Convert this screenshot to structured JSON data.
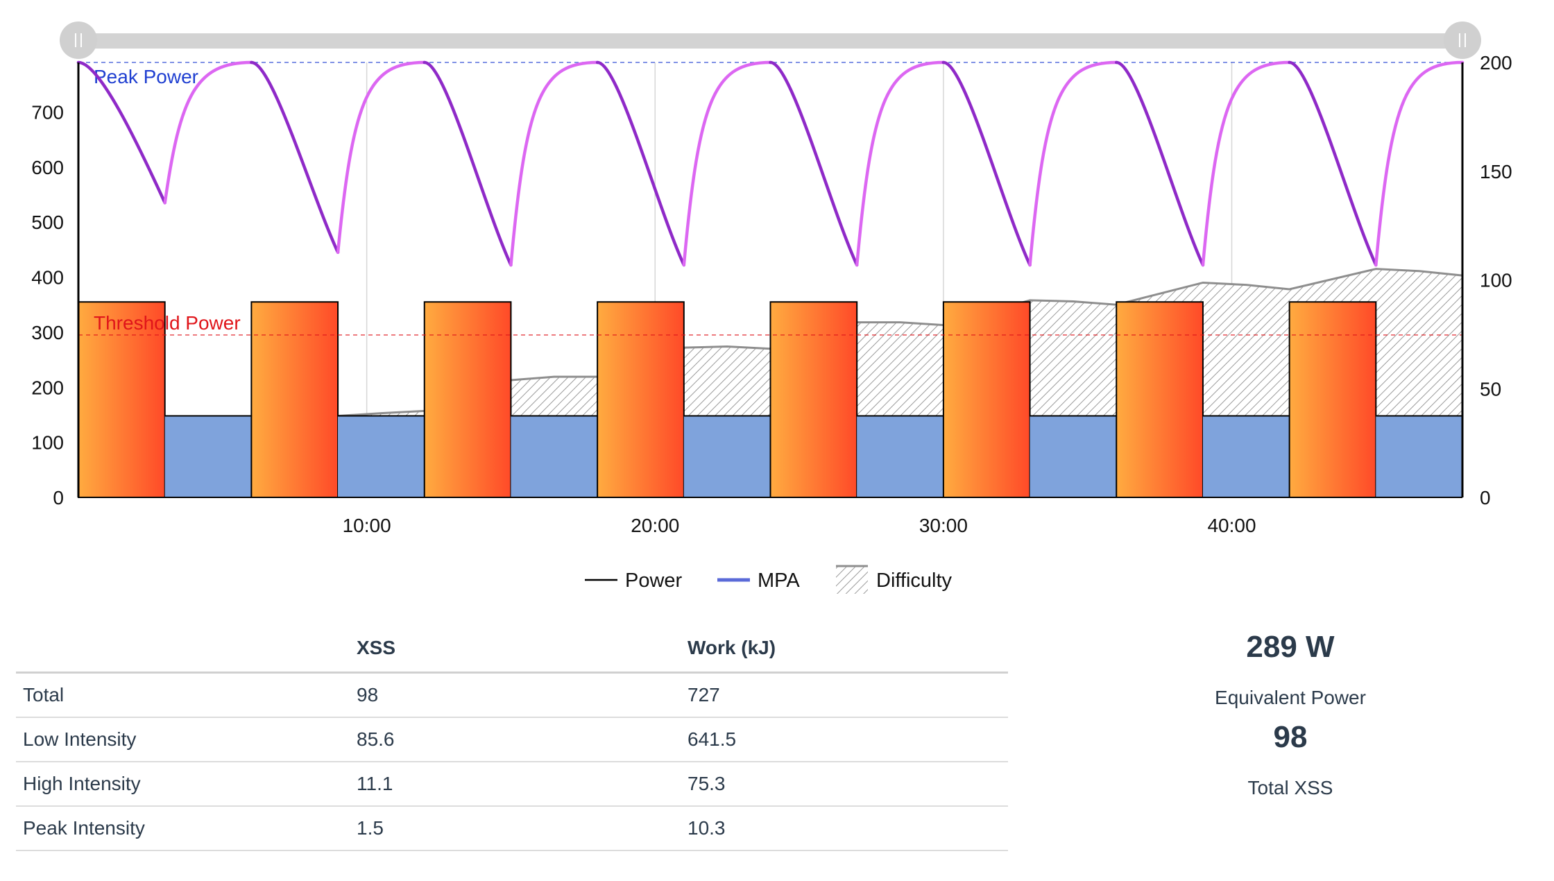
{
  "chart_data": {
    "type": "bar-line-area",
    "x_ticks": [
      "10:00",
      "20:00",
      "30:00",
      "40:00"
    ],
    "xlim_minutes": [
      0,
      48
    ],
    "ylim_left": [
      0,
      790
    ],
    "y_ticks_left": [
      0,
      100,
      200,
      300,
      400,
      500,
      600,
      700
    ],
    "ylim_right": [
      0,
      200
    ],
    "y_ticks_right": [
      0,
      50,
      100,
      150,
      200
    ],
    "reference_lines": [
      {
        "label": "Peak Power",
        "value": 790,
        "color": "#1f3fd1"
      },
      {
        "label": "Threshold Power",
        "value": 295,
        "color": "#e0151a"
      }
    ],
    "power_segments": [
      {
        "start": 0,
        "end": 3,
        "watts": 355,
        "kind": "high"
      },
      {
        "start": 3,
        "end": 6,
        "watts": 148,
        "kind": "low"
      },
      {
        "start": 6,
        "end": 9,
        "watts": 355,
        "kind": "high"
      },
      {
        "start": 9,
        "end": 12,
        "watts": 148,
        "kind": "low"
      },
      {
        "start": 12,
        "end": 15,
        "watts": 355,
        "kind": "high"
      },
      {
        "start": 15,
        "end": 18,
        "watts": 148,
        "kind": "low"
      },
      {
        "start": 18,
        "end": 21,
        "watts": 355,
        "kind": "high"
      },
      {
        "start": 21,
        "end": 24,
        "watts": 148,
        "kind": "low"
      },
      {
        "start": 24,
        "end": 27,
        "watts": 355,
        "kind": "high"
      },
      {
        "start": 27,
        "end": 30,
        "watts": 148,
        "kind": "low"
      },
      {
        "start": 30,
        "end": 33,
        "watts": 355,
        "kind": "high"
      },
      {
        "start": 33,
        "end": 36,
        "watts": 148,
        "kind": "low"
      },
      {
        "start": 36,
        "end": 39,
        "watts": 355,
        "kind": "high"
      },
      {
        "start": 39,
        "end": 42,
        "watts": 148,
        "kind": "low"
      },
      {
        "start": 42,
        "end": 45,
        "watts": 355,
        "kind": "high"
      },
      {
        "start": 45,
        "end": 48,
        "watts": 148,
        "kind": "low"
      }
    ],
    "mpa_peaks": [
      {
        "start": 0,
        "peak": 790,
        "trough": 535
      },
      {
        "start": 6,
        "peak": 790,
        "trough": 445
      },
      {
        "start": 12,
        "peak": 790,
        "trough": 422
      },
      {
        "start": 18,
        "peak": 790,
        "trough": 422
      },
      {
        "start": 24,
        "peak": 790,
        "trough": 422
      },
      {
        "start": 30,
        "peak": 790,
        "trough": 422
      },
      {
        "start": 36,
        "peak": 790,
        "trough": 422
      },
      {
        "start": 42,
        "peak": 790,
        "trough": 422
      }
    ],
    "difficulty": [
      {
        "x": 9.0,
        "y": 148
      },
      {
        "x": 10.5,
        "y": 153
      },
      {
        "x": 12.0,
        "y": 157
      },
      {
        "x": 15.0,
        "y": 213
      },
      {
        "x": 16.5,
        "y": 219
      },
      {
        "x": 18.0,
        "y": 219
      },
      {
        "x": 21.0,
        "y": 272
      },
      {
        "x": 22.5,
        "y": 274
      },
      {
        "x": 24.0,
        "y": 270
      },
      {
        "x": 27.0,
        "y": 318
      },
      {
        "x": 28.5,
        "y": 318
      },
      {
        "x": 30.0,
        "y": 313
      },
      {
        "x": 33.0,
        "y": 358
      },
      {
        "x": 34.5,
        "y": 356
      },
      {
        "x": 36.0,
        "y": 350
      },
      {
        "x": 39.0,
        "y": 390
      },
      {
        "x": 40.5,
        "y": 386
      },
      {
        "x": 42.0,
        "y": 378
      },
      {
        "x": 45.0,
        "y": 415
      },
      {
        "x": 46.5,
        "y": 411
      },
      {
        "x": 48.0,
        "y": 403
      }
    ],
    "legend": [
      {
        "label": "Power",
        "kind": "line",
        "color": "#000000"
      },
      {
        "label": "MPA",
        "kind": "line",
        "color": "#5a6ad8"
      },
      {
        "label": "Difficulty",
        "kind": "hatch",
        "color": "#9a9a9a"
      }
    ],
    "legend_position": "bottom-center",
    "colors": {
      "high_start": "#ffab40",
      "high_end": "#ff4a28",
      "low": "#7fa3dc",
      "mpa_light": "#dc67f2",
      "mpa_dark": "#8f2ac8",
      "grid": "#d6d6d6",
      "slider_track": "#d3d3d3",
      "slider_handle": "#d0d0d0"
    }
  },
  "table": {
    "headers": [
      "",
      "XSS",
      "Work (kJ)"
    ],
    "rows": [
      {
        "label": "Total",
        "xss": "98",
        "work": "727"
      },
      {
        "label": "Low Intensity",
        "xss": "85.6",
        "work": "641.5"
      },
      {
        "label": "High Intensity",
        "xss": "11.1",
        "work": "75.3"
      },
      {
        "label": "Peak Intensity",
        "xss": "1.5",
        "work": "10.3"
      }
    ]
  },
  "stats": {
    "equivalent_power_value": "289 W",
    "equivalent_power_label": "Equivalent Power",
    "total_xss_value": "98",
    "total_xss_label": "Total XSS"
  }
}
